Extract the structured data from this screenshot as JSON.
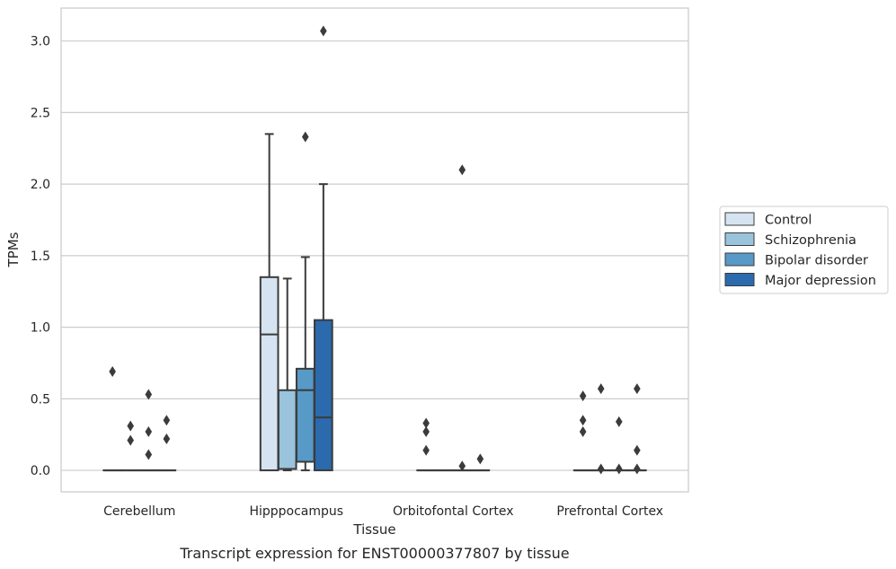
{
  "chart_data": {
    "type": "box",
    "caption": "Transcript expression for ENST00000377807 by tissue",
    "xlabel": "Tissue",
    "ylabel": "TPMs",
    "categories": [
      "Cerebellum",
      "Hipppocampus",
      "Orbitofontal Cortex",
      "Prefrontal Cortex"
    ],
    "ylim": [
      -0.15,
      3.23
    ],
    "yticks": [
      0.0,
      0.5,
      1.0,
      1.5,
      2.0,
      2.5,
      3.0
    ],
    "ytick_labels": [
      "0.0",
      "0.5",
      "1.0",
      "1.5",
      "2.0",
      "2.5",
      "3.0"
    ],
    "grid": "horizontal",
    "legend_position": "right",
    "series": [
      {
        "name": "Control",
        "color": "#d6e4f1",
        "boxes": [
          {
            "q1": 0,
            "median": 0,
            "q3": 0,
            "whislo": 0,
            "whishi": 0,
            "fliers": [
              0.69
            ]
          },
          {
            "q1": 0,
            "median": 0.95,
            "q3": 1.35,
            "whislo": 0,
            "whishi": 2.35,
            "fliers": []
          },
          {
            "q1": 0,
            "median": 0,
            "q3": 0,
            "whislo": 0,
            "whishi": 0,
            "fliers": [
              0.33,
              0.27,
              0.14
            ]
          },
          {
            "q1": 0,
            "median": 0,
            "q3": 0,
            "whislo": 0,
            "whishi": 0,
            "fliers": [
              0.52,
              0.35,
              0.27
            ]
          }
        ]
      },
      {
        "name": "Schizophrenia",
        "color": "#9ac3dc",
        "boxes": [
          {
            "q1": 0,
            "median": 0,
            "q3": 0,
            "whislo": 0,
            "whishi": 0,
            "fliers": [
              0.31,
              0.21
            ]
          },
          {
            "q1": 0.01,
            "median": 0.01,
            "q3": 0.56,
            "whislo": 0,
            "whishi": 1.34,
            "fliers": []
          },
          {
            "q1": 0,
            "median": 0,
            "q3": 0,
            "whislo": 0,
            "whishi": 0,
            "fliers": []
          },
          {
            "q1": 0,
            "median": 0,
            "q3": 0,
            "whislo": 0,
            "whishi": 0,
            "fliers": [
              0.57,
              0.01
            ]
          }
        ]
      },
      {
        "name": "Bipolar disorder",
        "color": "#5799c7",
        "boxes": [
          {
            "q1": 0,
            "median": 0,
            "q3": 0,
            "whislo": 0,
            "whishi": 0,
            "fliers": [
              0.53,
              0.27,
              0.11
            ]
          },
          {
            "q1": 0.06,
            "median": 0.56,
            "q3": 0.71,
            "whislo": 0,
            "whishi": 1.49,
            "fliers": [
              2.33
            ]
          },
          {
            "q1": 0,
            "median": 0,
            "q3": 0,
            "whislo": 0,
            "whishi": 0,
            "fliers": [
              2.1,
              0.03
            ]
          },
          {
            "q1": 0,
            "median": 0,
            "q3": 0,
            "whislo": 0,
            "whishi": 0,
            "fliers": [
              0.34,
              0.01
            ]
          }
        ]
      },
      {
        "name": "Major depression",
        "color": "#2a6aad",
        "boxes": [
          {
            "q1": 0,
            "median": 0,
            "q3": 0,
            "whislo": 0,
            "whishi": 0,
            "fliers": [
              0.35,
              0.22
            ]
          },
          {
            "q1": 0,
            "median": 0.37,
            "q3": 1.05,
            "whislo": 0,
            "whishi": 2.0,
            "fliers": [
              3.07
            ]
          },
          {
            "q1": 0,
            "median": 0,
            "q3": 0,
            "whislo": 0,
            "whishi": 0,
            "fliers": [
              0.08
            ]
          },
          {
            "q1": 0,
            "median": 0,
            "q3": 0,
            "whislo": 0,
            "whishi": 0,
            "fliers": [
              0.57,
              0.14,
              0.01
            ]
          }
        ]
      }
    ]
  }
}
